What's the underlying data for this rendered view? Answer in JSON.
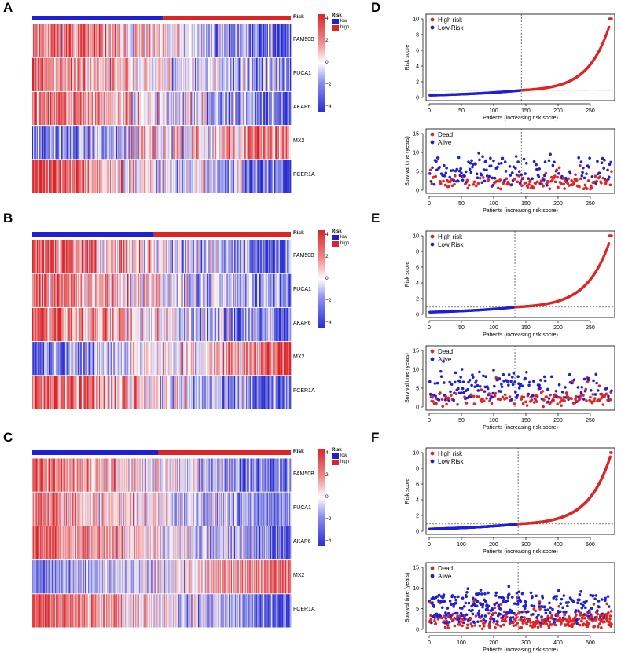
{
  "colors": {
    "low_blue": "#1f1fd8",
    "high_red": "#e02424",
    "heat_blue": "#2b2fd0",
    "heat_white": "#ffffff",
    "heat_red": "#d9252b"
  },
  "panels": {
    "A": "A",
    "B": "B",
    "C": "C",
    "D": "D",
    "E": "E",
    "F": "F"
  },
  "heatmaps": [
    {
      "letter": "A",
      "risk_title": "Risk",
      "legend_title": "Risk",
      "legend_low": "low",
      "legend_high": "high",
      "scale_ticks": [
        "4",
        "2",
        "0",
        "−2",
        "−4"
      ],
      "genes": [
        "FAM50B",
        "FUCA1",
        "AKAP6",
        "MX2",
        "FCER1A"
      ],
      "n_low": 143,
      "n_high": 140,
      "seed": 11
    },
    {
      "letter": "B",
      "risk_title": "Risk",
      "legend_title": "Risk",
      "legend_low": "low",
      "legend_high": "high",
      "scale_ticks": [
        "4",
        "2",
        "0",
        "−2",
        "−4"
      ],
      "genes": [
        "FAM50B",
        "FUCA1",
        "AKAP6",
        "MX2",
        "FCER1A"
      ],
      "n_low": 133,
      "n_high": 150,
      "seed": 29
    },
    {
      "letter": "C",
      "risk_title": "Risk",
      "legend_title": "Risk",
      "legend_low": "low",
      "legend_high": "high",
      "scale_ticks": [
        "4",
        "2",
        "0",
        "−2",
        "−4"
      ],
      "genes": [
        "FAM50B",
        "FUCA1",
        "AKAP6",
        "MX2",
        "FCER1A"
      ],
      "n_low": 276,
      "n_high": 290,
      "seed": 47
    }
  ],
  "chart_data": [
    {
      "panel": "D",
      "type": "scatter",
      "kind": "risk",
      "ylabel": "Risk score",
      "xlabel": "Patients (increasing risk socre)",
      "xlim": [
        0,
        283
      ],
      "ylim": [
        0,
        10
      ],
      "xticks": [
        0,
        50,
        100,
        150,
        200,
        250
      ],
      "yticks": [
        0,
        2,
        4,
        6,
        8,
        10
      ],
      "cutoff_x": 143,
      "cutoff_y": 0.92,
      "series": [
        {
          "name": "High risk",
          "color": "#e02424",
          "range": [
            144,
            283
          ],
          "start": 0.93,
          "end": 10,
          "shape": 4.2
        },
        {
          "name": "Low Risk",
          "color": "#1f1fd8",
          "range": [
            1,
            143
          ],
          "start": 0.28,
          "end": 0.91,
          "shape": 1.3
        }
      ]
    },
    {
      "panel": "D",
      "type": "scatter",
      "kind": "survival",
      "ylabel": "Survival time (years)",
      "xlabel": "Patients (increasing risk socre)",
      "xlim": [
        0,
        283
      ],
      "ylim": [
        0,
        15
      ],
      "xticks": [
        0,
        50,
        100,
        150,
        200,
        250
      ],
      "yticks": [
        0,
        5,
        10,
        15
      ],
      "cutoff_x": 143,
      "n": 283,
      "seed": 101,
      "series": [
        {
          "name": "Dead",
          "color": "#e02424"
        },
        {
          "name": "Alive",
          "color": "#1f1fd8"
        }
      ]
    },
    {
      "panel": "E",
      "type": "scatter",
      "kind": "risk",
      "ylabel": "Risk score",
      "xlabel": "Patients (increasing risk socre)",
      "xlim": [
        0,
        283
      ],
      "ylim": [
        0,
        10
      ],
      "xticks": [
        0,
        50,
        100,
        150,
        200,
        250
      ],
      "yticks": [
        0,
        2,
        4,
        6,
        8,
        10
      ],
      "cutoff_x": 133,
      "cutoff_y": 0.92,
      "series": [
        {
          "name": "High risk",
          "color": "#e02424",
          "range": [
            134,
            283
          ],
          "start": 0.93,
          "end": 10,
          "shape": 4.2
        },
        {
          "name": "Low Risk",
          "color": "#1f1fd8",
          "range": [
            1,
            133
          ],
          "start": 0.28,
          "end": 0.91,
          "shape": 1.3
        }
      ]
    },
    {
      "panel": "E",
      "type": "scatter",
      "kind": "survival",
      "ylabel": "Survival time (years)",
      "xlabel": "Patients (increasing risk socre)",
      "xlim": [
        0,
        283
      ],
      "ylim": [
        0,
        15
      ],
      "xticks": [
        0,
        50,
        100,
        150,
        200,
        250
      ],
      "yticks": [
        0,
        5,
        10,
        15
      ],
      "cutoff_x": 133,
      "n": 283,
      "seed": 202,
      "series": [
        {
          "name": "Dead",
          "color": "#e02424"
        },
        {
          "name": "Alive",
          "color": "#1f1fd8"
        }
      ]
    },
    {
      "panel": "F",
      "type": "scatter",
      "kind": "risk",
      "ylabel": "Risk score",
      "xlabel": "Patients (increasing risk socre)",
      "xlim": [
        0,
        566
      ],
      "ylim": [
        0,
        10
      ],
      "xticks": [
        0,
        100,
        200,
        300,
        400,
        500
      ],
      "yticks": [
        0,
        2,
        4,
        6,
        8,
        10
      ],
      "cutoff_x": 276,
      "cutoff_y": 0.92,
      "series": [
        {
          "name": "High risk",
          "color": "#e02424",
          "range": [
            277,
            566
          ],
          "start": 0.93,
          "end": 10,
          "shape": 4.2
        },
        {
          "name": "Low Risk",
          "color": "#1f1fd8",
          "range": [
            1,
            276
          ],
          "start": 0.28,
          "end": 0.91,
          "shape": 1.3
        }
      ]
    },
    {
      "panel": "F",
      "type": "scatter",
      "kind": "survival",
      "ylabel": "Survival time (years)",
      "xlabel": "Patients (increasing risk socre)",
      "xlim": [
        0,
        566
      ],
      "ylim": [
        0,
        15
      ],
      "xticks": [
        0,
        100,
        200,
        300,
        400,
        500
      ],
      "yticks": [
        0,
        5,
        10,
        15
      ],
      "cutoff_x": 276,
      "n": 566,
      "seed": 303,
      "series": [
        {
          "name": "Dead",
          "color": "#e02424"
        },
        {
          "name": "Alive",
          "color": "#1f1fd8"
        }
      ]
    }
  ]
}
